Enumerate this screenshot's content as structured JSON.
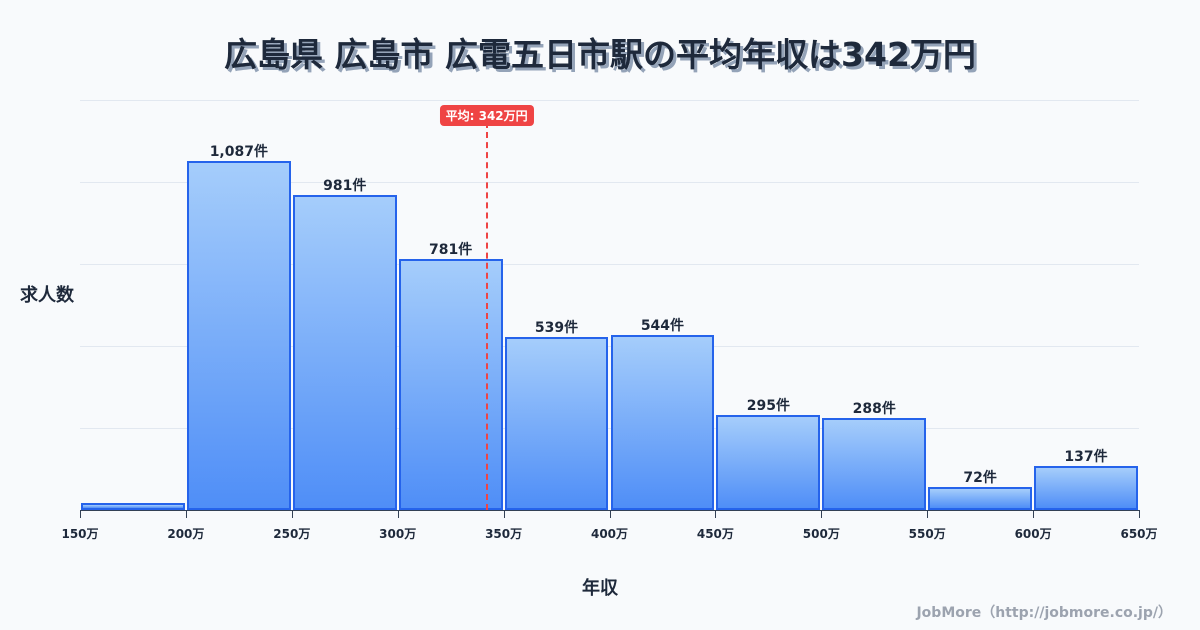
{
  "title": "広島県 広島市 広電五日市駅の平均年収は342万円",
  "footer": "JobMore（http://jobmore.co.jp/）",
  "colors": {
    "bar_top": "#a5cdfb",
    "bar_bottom": "#4f8ef7",
    "bar_border": "#2563eb",
    "average_line": "#ef4444",
    "text": "#1e293b",
    "grid": "#e2e8f0"
  },
  "chart_data": {
    "type": "bar",
    "title": "広島県 広島市 広電五日市駅の平均年収は342万円",
    "xlabel": "年収",
    "ylabel": "求人数",
    "x_edges": [
      150,
      200,
      250,
      300,
      350,
      400,
      450,
      500,
      550,
      600,
      650
    ],
    "x_tick_labels": [
      "150万",
      "200万",
      "250万",
      "300万",
      "350万",
      "400万",
      "450万",
      "500万",
      "550万",
      "600万",
      "650万"
    ],
    "categories": [
      "150-200万",
      "200-250万",
      "250-300万",
      "300-350万",
      "350-400万",
      "400-450万",
      "450-500万",
      "500-550万",
      "550-600万",
      "600-650万"
    ],
    "values": [
      22,
      1087,
      981,
      781,
      539,
      544,
      295,
      288,
      72,
      137
    ],
    "value_labels": [
      "",
      "1,087件",
      "981件",
      "781件",
      "539件",
      "544件",
      "295件",
      "288件",
      "72件",
      "137件"
    ],
    "ylim": [
      0,
      1277
    ],
    "grid": true,
    "gridlines": 5,
    "average": {
      "value": 342,
      "label": "平均: 342万円"
    }
  }
}
